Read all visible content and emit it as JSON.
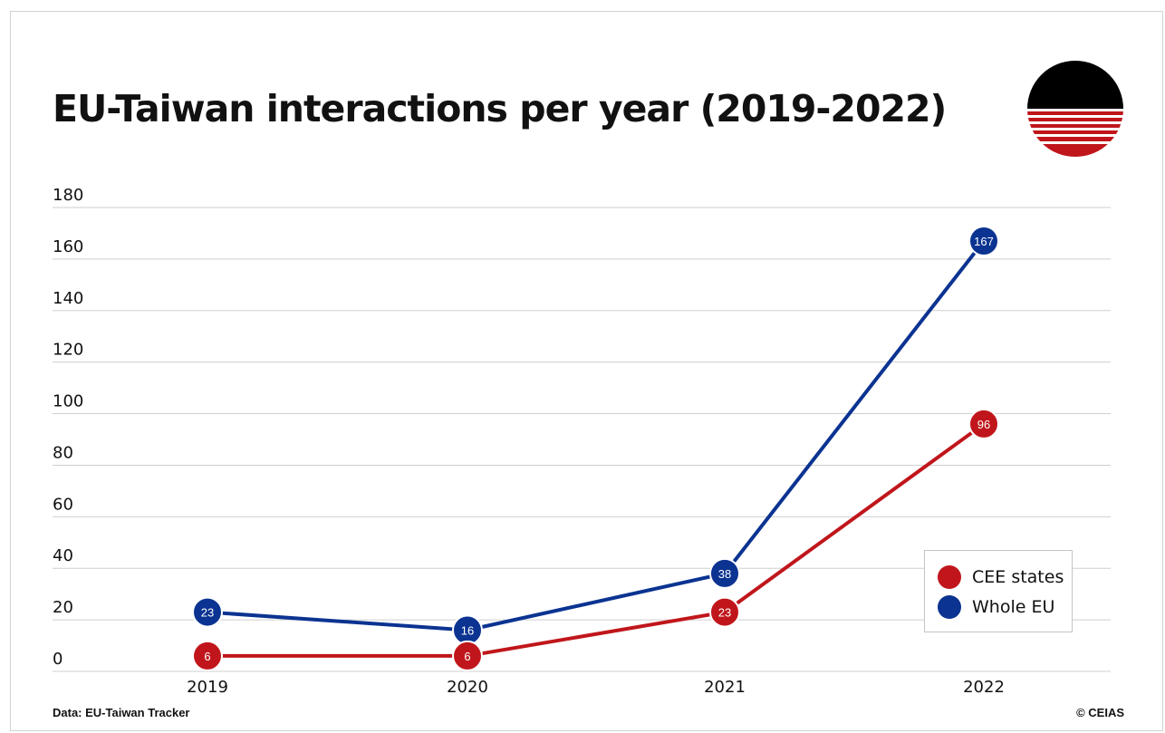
{
  "header": {
    "title": "EU-Taiwan interactions per year (2019-2022)"
  },
  "footer": {
    "source": "Data: EU-Taiwan Tracker",
    "credit": "© CEIAS"
  },
  "colors": {
    "cee": "#c0161b",
    "eu": "#0b3391",
    "grid": "#cfcfcf",
    "text": "#111111"
  },
  "chart_data": {
    "type": "line",
    "x": [
      "2019",
      "2020",
      "2021",
      "2022"
    ],
    "series": [
      {
        "name": "CEE states",
        "values": [
          6,
          6,
          23,
          96
        ],
        "color": "#c0161b"
      },
      {
        "name": "Whole EU",
        "values": [
          23,
          16,
          38,
          167
        ],
        "color": "#0b3391"
      }
    ],
    "yticks": [
      0,
      20,
      40,
      60,
      80,
      100,
      120,
      140,
      160,
      180
    ],
    "ylim": [
      0,
      180
    ],
    "grid": true,
    "legend_position": "bottom-right",
    "data_labels": true
  }
}
